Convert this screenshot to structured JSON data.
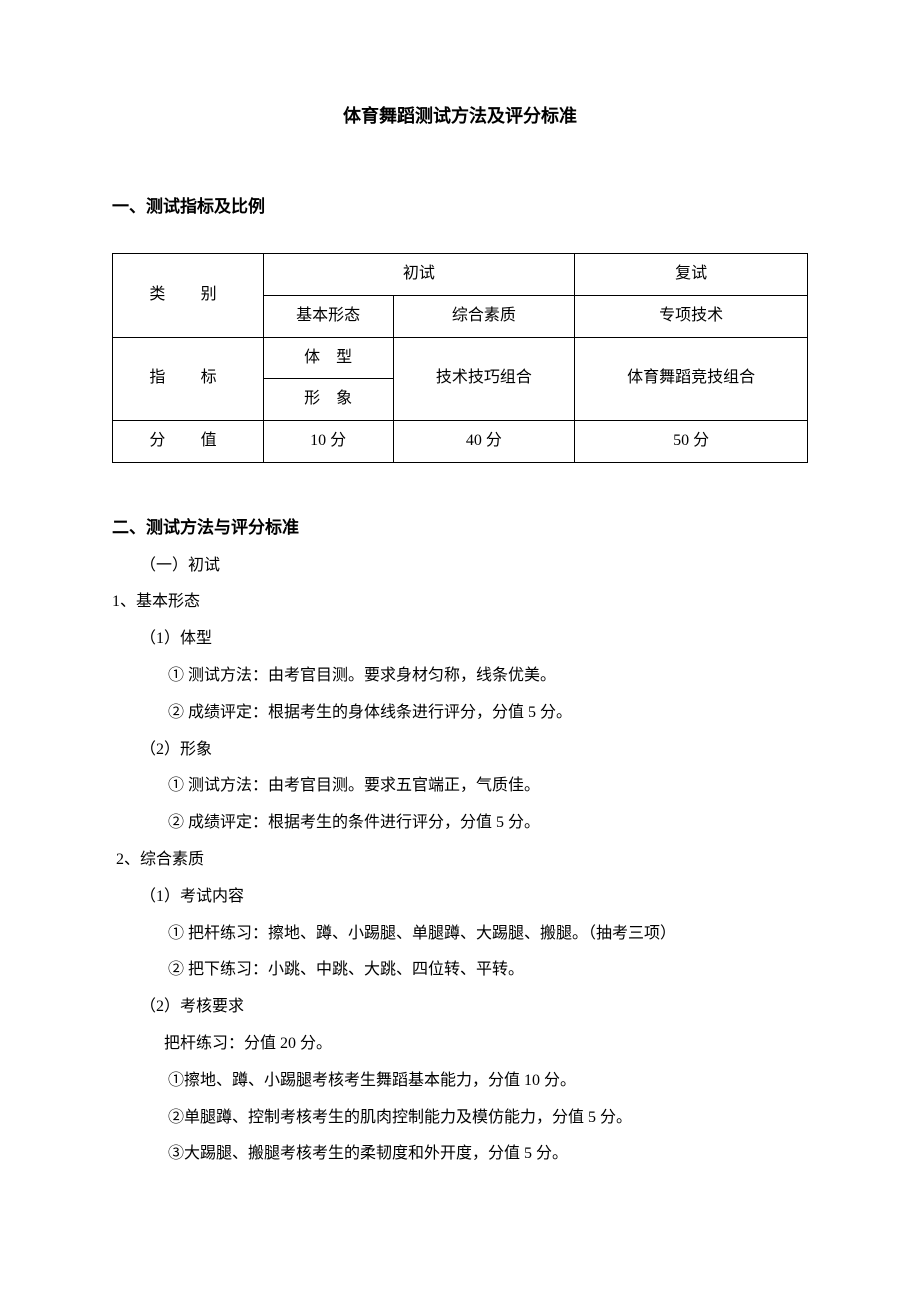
{
  "title": "体育舞蹈测试方法及评分标准",
  "section1": {
    "heading": "一、测试指标及比例",
    "table": {
      "r1c1": "类　别",
      "r1c2": "初试",
      "r1c3": "复试",
      "r2c1": "基本形态",
      "r2c2": "综合素质",
      "r2c3": "专项技术",
      "r3c1": "指　标",
      "r3c2": "体　型",
      "r3c3": "技术技巧组合",
      "r3c4": "体育舞蹈竞技组合",
      "r4c1": "形　象",
      "r5c1": "分　值",
      "r5c2": "10 分",
      "r5c3": "40 分",
      "r5c4": "50 分"
    }
  },
  "section2": {
    "heading": "二、测试方法与评分标准",
    "sub1": "（一）初试",
    "item1": {
      "heading": "1、基本形态",
      "p1": {
        "label": "（1）体型",
        "l1": "① 测试方法：由考官目测。要求身材匀称，线条优美。",
        "l2": "② 成绩评定：根据考生的身体线条进行评分，分值 5 分。"
      },
      "p2": {
        "label": "（2）形象",
        "l1": "① 测试方法：由考官目测。要求五官端正，气质佳。",
        "l2": "② 成绩评定：根据考生的条件进行评分，分值 5 分。"
      }
    },
    "item2": {
      "heading": "2、综合素质",
      "p1": {
        "label": "（1）考试内容",
        "l1": "① 把杆练习：擦地、蹲、小踢腿、单腿蹲、大踢腿、搬腿。（抽考三项）",
        "l2": "② 把下练习：小跳、中跳、大跳、四位转、平转。"
      },
      "p2": {
        "label": "（2）考核要求",
        "l0": "把杆练习：分值 20 分。",
        "l1": "①擦地、蹲、小踢腿考核考生舞蹈基本能力，分值 10 分。",
        "l2": "②单腿蹲、控制考核考生的肌肉控制能力及模仿能力，分值 5 分。",
        "l3": "③大踢腿、搬腿考核考生的柔韧度和外开度，分值 5 分。"
      }
    }
  }
}
